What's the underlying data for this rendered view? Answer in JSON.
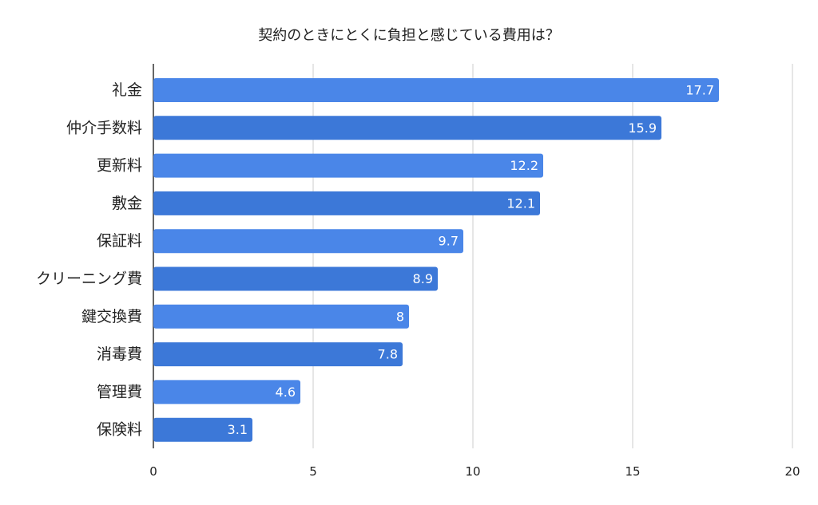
{
  "chart_data": {
    "type": "bar",
    "orientation": "horizontal",
    "title": "契約のときにとくに負担と感じている費用は？",
    "categories": [
      "礼金",
      "仲介手数料",
      "更新料",
      "敷金",
      "保証料",
      "クリーニング費",
      "鍵交換費",
      "消毒費",
      "管理費",
      "保険料"
    ],
    "values": [
      17.7,
      15.9,
      12.2,
      12.1,
      9.7,
      8.9,
      8,
      7.8,
      4.6,
      3.1
    ],
    "value_labels": [
      "17.7",
      "15.9",
      "12.2",
      "12.1",
      "9.7",
      "8.9",
      "8",
      "7.8",
      "4.6",
      "3.1"
    ],
    "xlim": [
      0,
      20
    ],
    "xticks": [
      0,
      5,
      10,
      15,
      20
    ],
    "xlabel": "",
    "ylabel": "",
    "grid": true,
    "legend": "none",
    "colors": [
      "#4a86e8",
      "#3c78d8"
    ]
  }
}
